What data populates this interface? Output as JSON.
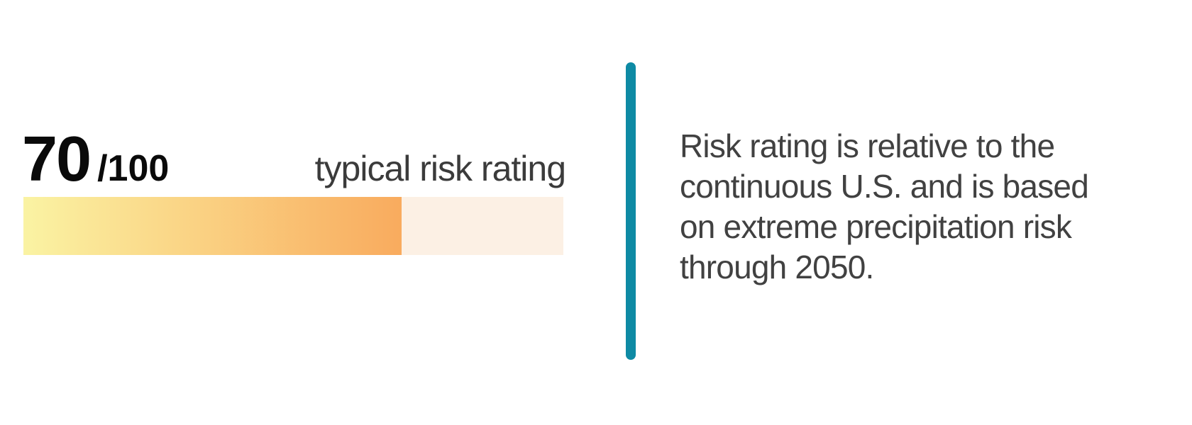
{
  "rating": {
    "score": "70",
    "denominator": "/100",
    "label": "typical risk rating",
    "percent": 70
  },
  "bar": {
    "fill_start_color": "#FAF3A3",
    "fill_end_color": "#F9AB5E",
    "track_color": "#FCF0E4"
  },
  "divider_color": "#0E8AA4",
  "description": {
    "lines": [
      "Risk rating is relative to the",
      "continuous U.S. and is based",
      "on extreme precipitation risk",
      "through 2050."
    ]
  },
  "chart_data": {
    "type": "bar",
    "title": "typical risk rating",
    "value": 70,
    "max": 100,
    "categories": [
      "typical risk rating"
    ],
    "values": [
      70
    ],
    "annotation": "Risk rating is relative to the continuous U.S. and is based on extreme precipitation risk through 2050.",
    "layout_hints": {
      "orientation": "horizontal",
      "fill_gradient": [
        "#FAF3A3",
        "#F9AB5E"
      ],
      "track_color": "#FCF0E4",
      "axis": "none",
      "grid": false,
      "legend": false
    }
  }
}
